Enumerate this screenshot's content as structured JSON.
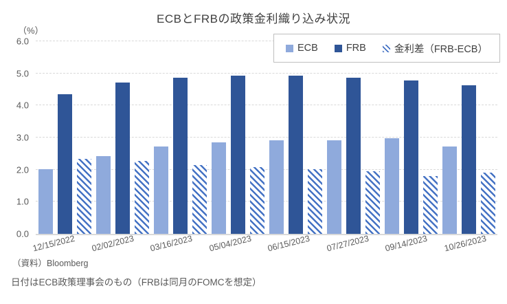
{
  "title": "ECBとFRBの政策金利織り込み状況",
  "unit_label": "（%）",
  "footer": {
    "source": "（資料）Bloomberg",
    "note": "日付はECB政策理事会のもの（FRBは同月のFOMCを想定）"
  },
  "colors": {
    "ecb": "#8FAADC",
    "frb": "#2F5597",
    "spread": "#4472C4",
    "grid": "#D9D9D9",
    "text": "#595959",
    "title": "#404040",
    "legend_border": "#BFBFBF"
  },
  "chart_data": {
    "type": "bar",
    "title": "ECBとFRBの政策金利織り込み状況",
    "xlabel": "",
    "ylabel": "（%）",
    "ylim": [
      0,
      6
    ],
    "yticks": [
      "0.0",
      "1.0",
      "2.0",
      "3.0",
      "4.0",
      "5.0",
      "6.0"
    ],
    "grid": true,
    "legend_position": "top-right",
    "categories": [
      "12/15/2022",
      "02/02/2023",
      "03/16/2023",
      "05/04/2023",
      "06/15/2023",
      "07/27/2023",
      "09/14/2023",
      "10/26/2023"
    ],
    "series": [
      {
        "key": "ecb",
        "name": "ECB",
        "pattern": "solid",
        "values": [
          2.02,
          2.43,
          2.72,
          2.85,
          2.92,
          2.91,
          2.97,
          2.72
        ]
      },
      {
        "key": "frb",
        "name": "FRB",
        "pattern": "solid",
        "values": [
          4.35,
          4.71,
          4.87,
          4.93,
          4.93,
          4.87,
          4.77,
          4.63
        ]
      },
      {
        "key": "spread",
        "name": "金利差（FRB-ECB）",
        "pattern": "striped",
        "values": [
          2.33,
          2.28,
          2.15,
          2.08,
          2.01,
          1.96,
          1.8,
          1.91
        ]
      }
    ]
  }
}
